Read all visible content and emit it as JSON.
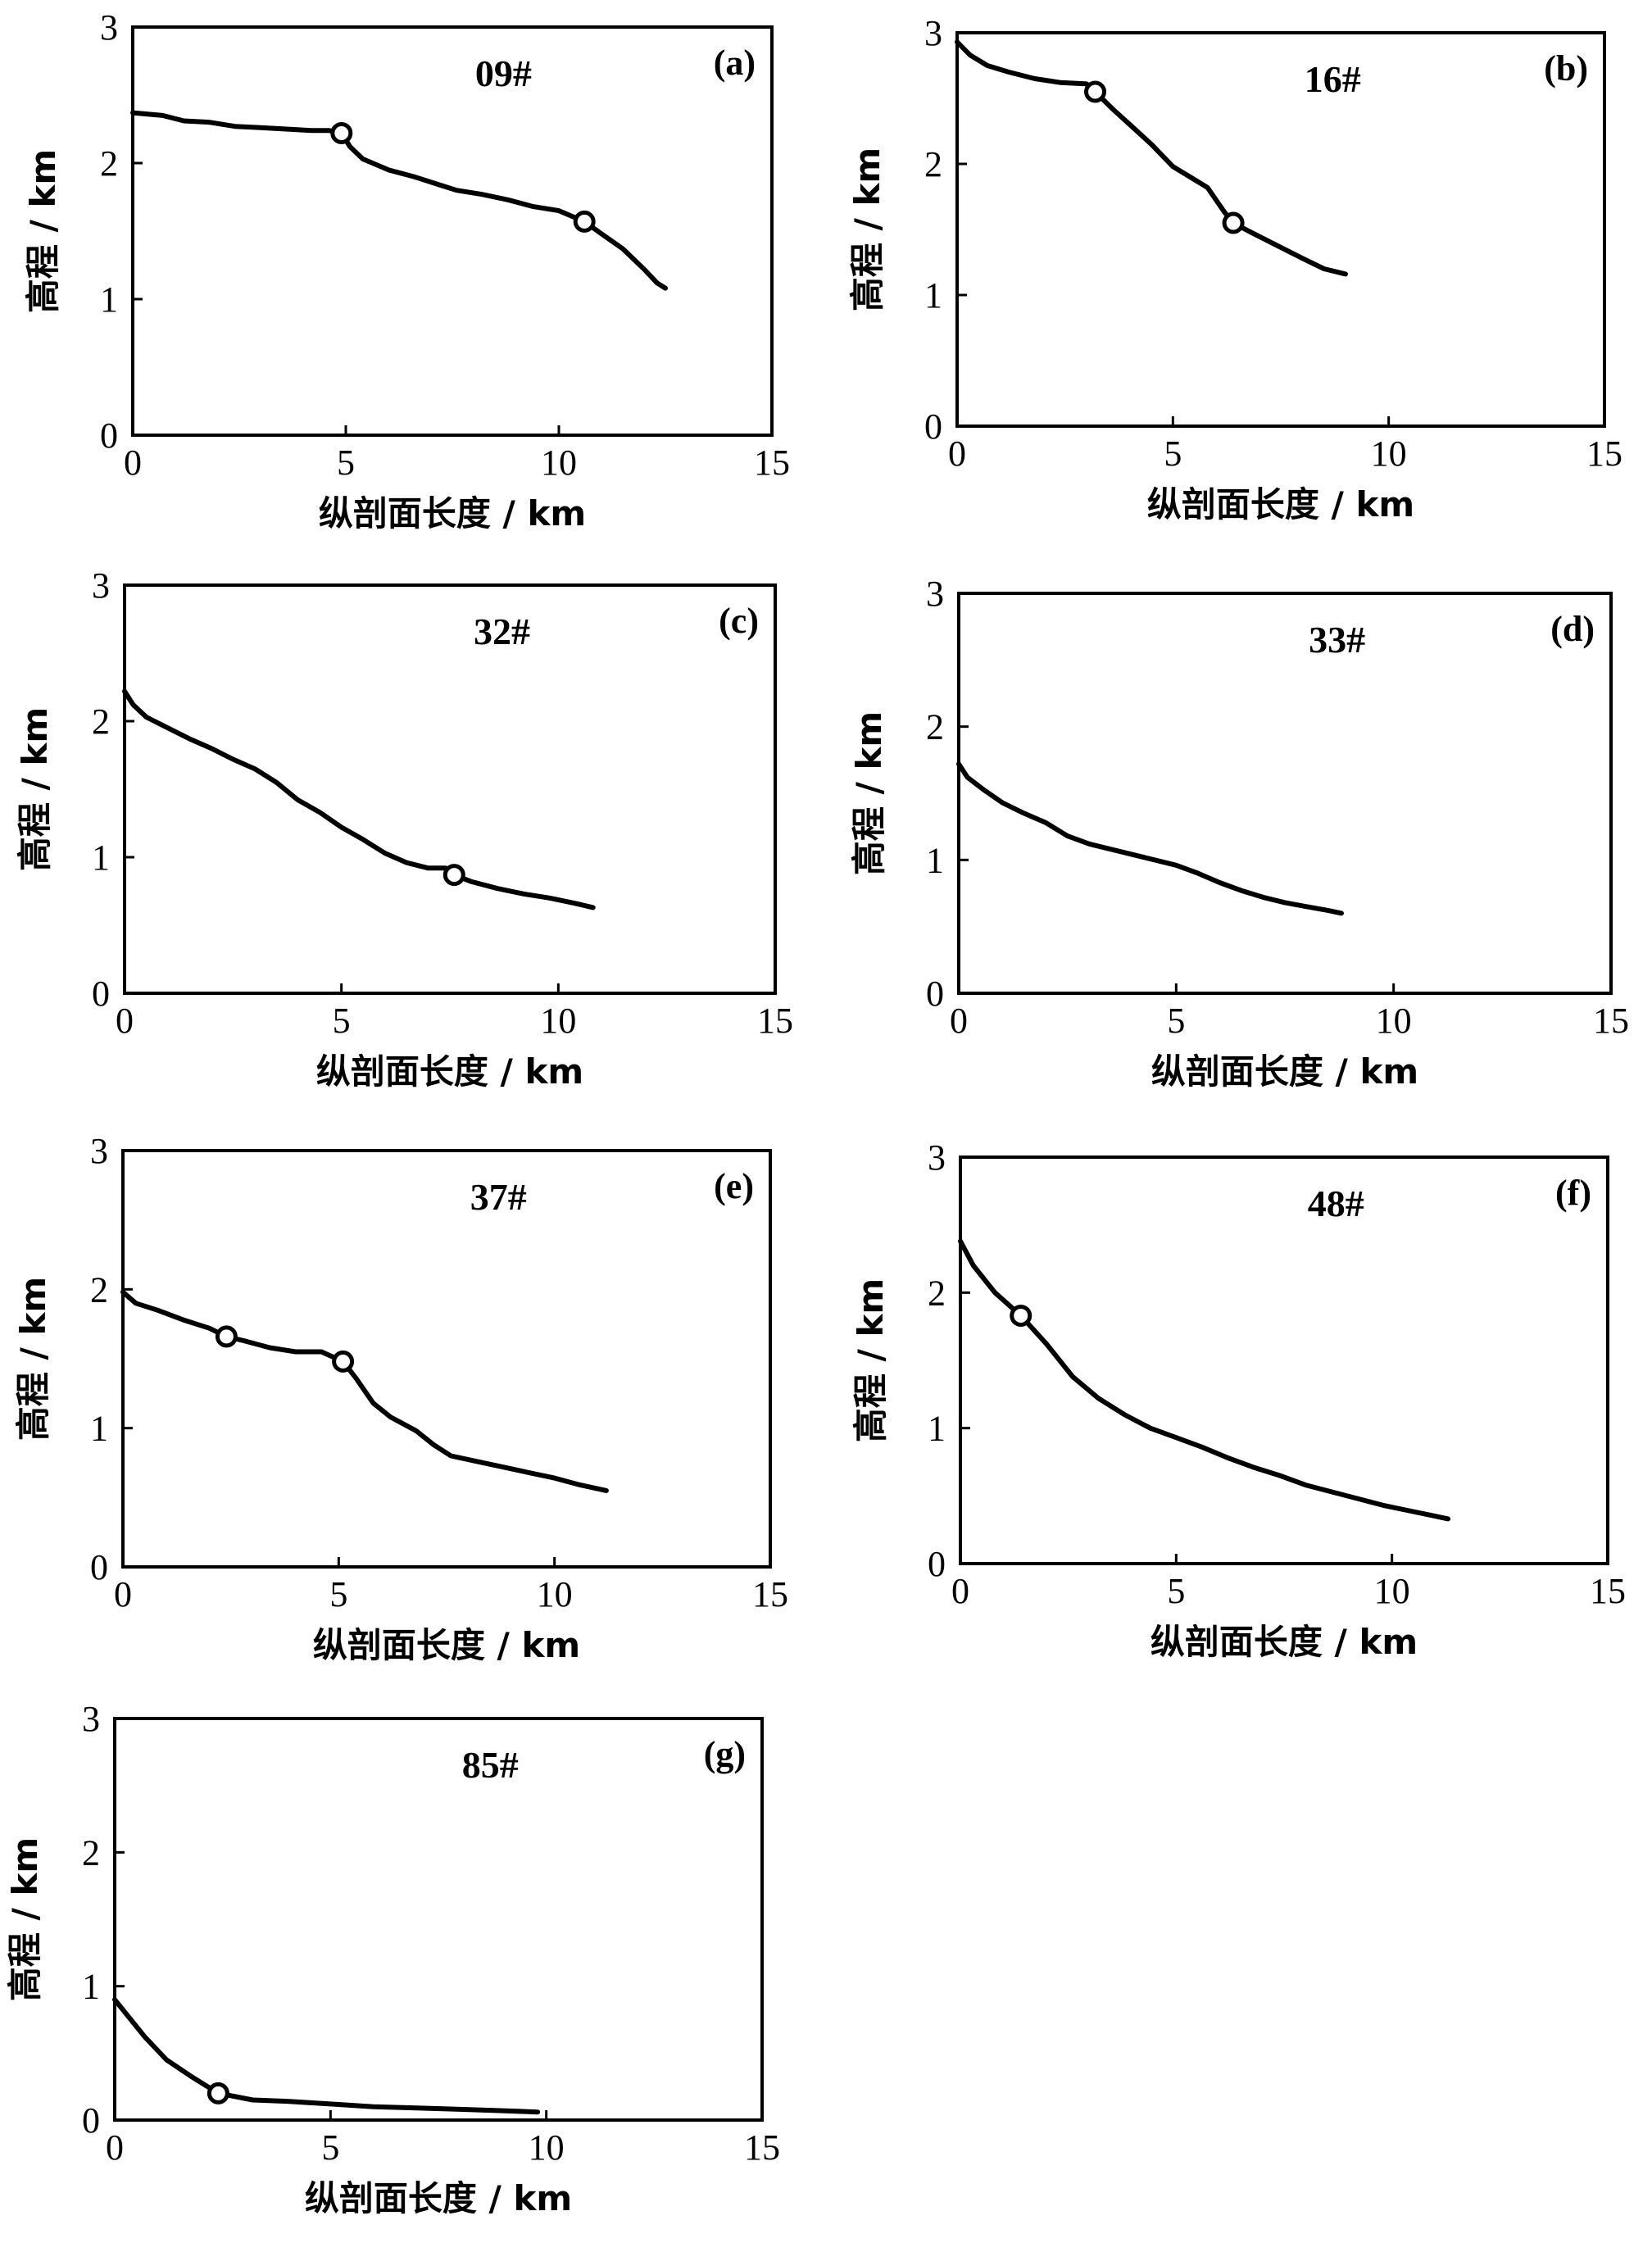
{
  "chart_data": [
    {
      "id": "a",
      "panel_label": "(a)",
      "title": "09#",
      "type": "line",
      "xlabel": "纵剖面长度 / km",
      "ylabel": "高程 / km",
      "xlim": [
        0,
        15
      ],
      "ylim": [
        0,
        3
      ],
      "xticks": [
        "0",
        "5",
        "10",
        "15"
      ],
      "yticks": [
        "0",
        "1",
        "2",
        "3"
      ],
      "x": [
        0,
        0.7,
        1.2,
        1.8,
        2.4,
        3.0,
        3.6,
        4.2,
        4.6,
        4.9,
        5.1,
        5.4,
        6.0,
        6.6,
        7.2,
        7.6,
        8.2,
        8.8,
        9.4,
        10.0,
        10.6,
        11.0,
        11.5,
        12.0,
        12.3,
        12.5
      ],
      "y": [
        2.37,
        2.35,
        2.31,
        2.3,
        2.27,
        2.26,
        2.25,
        2.24,
        2.24,
        2.22,
        2.12,
        2.03,
        1.95,
        1.9,
        1.84,
        1.8,
        1.77,
        1.73,
        1.68,
        1.65,
        1.57,
        1.48,
        1.37,
        1.22,
        1.12,
        1.08
      ],
      "markers": [
        {
          "x": 4.9,
          "y": 2.22
        },
        {
          "x": 10.6,
          "y": 1.57
        }
      ]
    },
    {
      "id": "b",
      "panel_label": "(b)",
      "title": "16#",
      "type": "line",
      "xlabel": "纵剖面长度 / km",
      "ylabel": "高程 / km",
      "xlim": [
        0,
        15
      ],
      "ylim": [
        0,
        3
      ],
      "xticks": [
        "0",
        "5",
        "10",
        "15"
      ],
      "yticks": [
        "0",
        "1",
        "2",
        "3"
      ],
      "x": [
        0,
        0.3,
        0.7,
        1.2,
        1.8,
        2.4,
        3.0,
        3.2,
        3.6,
        4.0,
        4.5,
        5.0,
        5.4,
        5.8,
        6.2,
        6.4,
        6.8,
        7.4,
        8.0,
        8.5,
        9.0
      ],
      "y": [
        2.93,
        2.83,
        2.75,
        2.7,
        2.65,
        2.62,
        2.61,
        2.55,
        2.42,
        2.3,
        2.15,
        1.98,
        1.9,
        1.82,
        1.63,
        1.55,
        1.48,
        1.38,
        1.28,
        1.2,
        1.16
      ],
      "markers": [
        {
          "x": 3.2,
          "y": 2.55
        },
        {
          "x": 6.4,
          "y": 1.55
        }
      ]
    },
    {
      "id": "c",
      "panel_label": "(c)",
      "title": "32#",
      "type": "line",
      "xlabel": "纵剖面长度 / km",
      "ylabel": "高程 / km",
      "xlim": [
        0,
        15
      ],
      "ylim": [
        0,
        3
      ],
      "xticks": [
        "0",
        "5",
        "10",
        "15"
      ],
      "yticks": [
        "0",
        "1",
        "2",
        "3"
      ],
      "x": [
        0,
        0.2,
        0.5,
        1.0,
        1.5,
        2.0,
        2.5,
        3.0,
        3.5,
        4.0,
        4.5,
        5.0,
        5.5,
        6.0,
        6.5,
        7.0,
        7.4,
        7.6,
        8.0,
        8.6,
        9.2,
        9.8,
        10.4,
        10.8
      ],
      "y": [
        2.22,
        2.12,
        2.03,
        1.95,
        1.87,
        1.8,
        1.72,
        1.65,
        1.55,
        1.42,
        1.33,
        1.22,
        1.13,
        1.03,
        0.96,
        0.92,
        0.92,
        0.87,
        0.82,
        0.77,
        0.73,
        0.7,
        0.66,
        0.63
      ],
      "markers": [
        {
          "x": 7.6,
          "y": 0.87
        }
      ]
    },
    {
      "id": "d",
      "panel_label": "(d)",
      "title": "33#",
      "type": "line",
      "xlabel": "纵剖面长度 / km",
      "ylabel": "高程 / km",
      "xlim": [
        0,
        15
      ],
      "ylim": [
        0,
        3
      ],
      "xticks": [
        "0",
        "5",
        "10",
        "15"
      ],
      "yticks": [
        "0",
        "1",
        "2",
        "3"
      ],
      "x": [
        0,
        0.2,
        0.6,
        1.0,
        1.5,
        2.0,
        2.5,
        3.0,
        3.5,
        4.0,
        4.5,
        5.0,
        5.5,
        6.0,
        6.5,
        7.0,
        7.5,
        8.0,
        8.5,
        8.8
      ],
      "y": [
        1.72,
        1.62,
        1.52,
        1.43,
        1.35,
        1.28,
        1.18,
        1.12,
        1.08,
        1.04,
        1.0,
        0.96,
        0.9,
        0.83,
        0.77,
        0.72,
        0.68,
        0.65,
        0.62,
        0.6
      ],
      "markers": []
    },
    {
      "id": "e",
      "panel_label": "(e)",
      "title": "37#",
      "type": "line",
      "xlabel": "纵剖面长度 / km",
      "ylabel": "高程 / km",
      "xlim": [
        0,
        15
      ],
      "ylim": [
        0,
        3
      ],
      "xticks": [
        "0",
        "5",
        "10",
        "15"
      ],
      "yticks": [
        "0",
        "1",
        "2",
        "3"
      ],
      "x": [
        0,
        0.3,
        0.8,
        1.4,
        2.0,
        2.4,
        2.8,
        3.4,
        4.0,
        4.6,
        5.1,
        5.4,
        5.8,
        6.2,
        6.8,
        7.2,
        7.6,
        8.2,
        8.8,
        9.4,
        10.0,
        10.6,
        11.2
      ],
      "y": [
        1.98,
        1.9,
        1.85,
        1.78,
        1.72,
        1.66,
        1.63,
        1.58,
        1.55,
        1.55,
        1.48,
        1.36,
        1.18,
        1.08,
        0.98,
        0.88,
        0.8,
        0.76,
        0.72,
        0.68,
        0.64,
        0.59,
        0.55
      ],
      "markers": [
        {
          "x": 2.4,
          "y": 1.66
        },
        {
          "x": 5.1,
          "y": 1.48
        }
      ]
    },
    {
      "id": "f",
      "panel_label": "(f)",
      "title": "48#",
      "type": "line",
      "xlabel": "纵剖面长度 / km",
      "ylabel": "高程 / km",
      "xlim": [
        0,
        15
      ],
      "ylim": [
        0,
        3
      ],
      "xticks": [
        "0",
        "5",
        "10",
        "15"
      ],
      "yticks": [
        "0",
        "1",
        "2",
        "3"
      ],
      "x": [
        0,
        0.3,
        0.8,
        1.4,
        2.0,
        2.6,
        3.2,
        3.8,
        4.4,
        5.0,
        5.6,
        6.2,
        6.8,
        7.4,
        8.0,
        8.6,
        9.2,
        9.8,
        10.4,
        11.0,
        11.3
      ],
      "y": [
        2.38,
        2.2,
        2.0,
        1.83,
        1.62,
        1.38,
        1.22,
        1.1,
        1.0,
        0.93,
        0.86,
        0.78,
        0.71,
        0.65,
        0.58,
        0.53,
        0.48,
        0.43,
        0.39,
        0.35,
        0.33
      ],
      "markers": [
        {
          "x": 1.4,
          "y": 1.83
        }
      ]
    },
    {
      "id": "g",
      "panel_label": "(g)",
      "title": "85#",
      "type": "line",
      "xlabel": "纵剖面长度 / km",
      "ylabel": "高程 / km",
      "xlim": [
        0,
        15
      ],
      "ylim": [
        0,
        3
      ],
      "xticks": [
        "0",
        "5",
        "10",
        "15"
      ],
      "yticks": [
        "0",
        "1",
        "2",
        "3"
      ],
      "x": [
        0,
        0.3,
        0.7,
        1.2,
        1.8,
        2.4,
        3.2,
        4.0,
        5.0,
        6.0,
        7.0,
        8.0,
        9.0,
        9.8
      ],
      "y": [
        0.9,
        0.78,
        0.62,
        0.45,
        0.32,
        0.2,
        0.15,
        0.14,
        0.12,
        0.1,
        0.09,
        0.08,
        0.07,
        0.06
      ],
      "markers": [
        {
          "x": 2.4,
          "y": 0.2
        }
      ]
    }
  ]
}
